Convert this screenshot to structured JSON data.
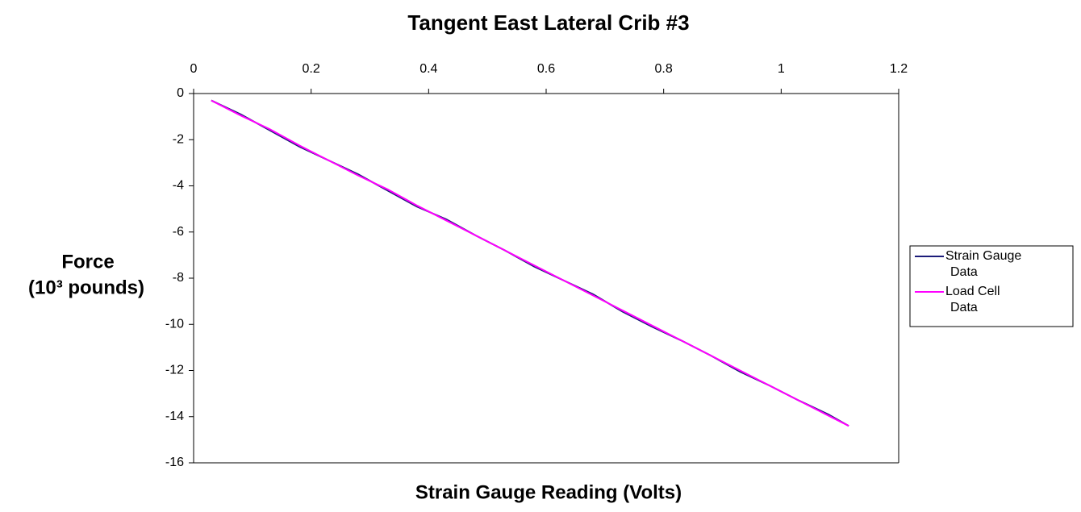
{
  "chart_data": {
    "type": "line",
    "title": "Tangent East Lateral Crib #3",
    "xlabel": "Strain Gauge Reading (Volts)",
    "ylabel": [
      "Force",
      "(10³ pounds)"
    ],
    "x": [
      0.03,
      0.08,
      0.13,
      0.18,
      0.23,
      0.28,
      0.33,
      0.38,
      0.43,
      0.48,
      0.53,
      0.58,
      0.63,
      0.68,
      0.73,
      0.78,
      0.83,
      0.88,
      0.93,
      0.98,
      1.03,
      1.08,
      1.115
    ],
    "series": [
      {
        "name": "Strain Gauge Data",
        "color": "#1c1c7a",
        "values": [
          -0.3,
          -0.9,
          -1.6,
          -2.3,
          -2.9,
          -3.5,
          -4.2,
          -4.9,
          -5.45,
          -6.15,
          -6.8,
          -7.5,
          -8.1,
          -8.7,
          -9.45,
          -10.1,
          -10.7,
          -11.35,
          -12.05,
          -12.65,
          -13.3,
          -13.9,
          -14.4
        ]
      },
      {
        "name": "Load Cell Data",
        "color": "#ff00ff",
        "values": [
          -0.3,
          -0.95,
          -1.55,
          -2.25,
          -2.9,
          -3.55,
          -4.15,
          -4.85,
          -5.5,
          -6.15,
          -6.8,
          -7.45,
          -8.1,
          -8.75,
          -9.4,
          -10.05,
          -10.7,
          -11.35,
          -12.0,
          -12.65,
          -13.3,
          -13.95,
          -14.4
        ]
      }
    ],
    "xlim": [
      0,
      1.2
    ],
    "xticks": [
      0,
      0.2,
      0.4,
      0.6,
      0.8,
      1,
      1.2
    ],
    "ylim": [
      -16,
      0
    ],
    "yticks": [
      0,
      -2,
      -4,
      -6,
      -8,
      -10,
      -12,
      -14,
      -16
    ],
    "x_axis_position": "top",
    "grid": false,
    "legend": "right"
  }
}
